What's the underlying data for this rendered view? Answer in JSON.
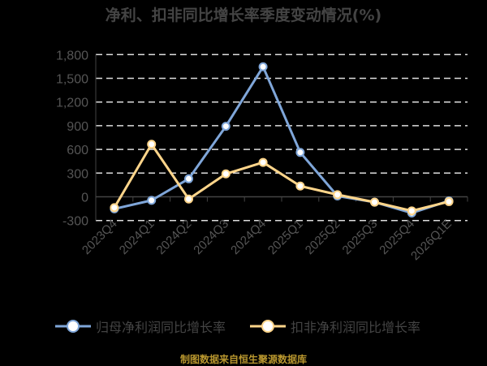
{
  "chart_data": {
    "type": "line",
    "title": "净利、扣非同比增长率季度变动情况(%)",
    "categories": [
      "2023Q4",
      "2024Q1",
      "2024Q2",
      "2024Q3",
      "2024Q4",
      "2025Q1",
      "2025Q2",
      "2025Q3",
      "2025Q4",
      "2026Q1E"
    ],
    "series": [
      {
        "name": "归母净利润同比增长率",
        "color": "#7fa6d9",
        "values": [
          -153,
          -45,
          228,
          893,
          1646,
          562,
          10,
          -68,
          -205,
          -51
        ]
      },
      {
        "name": "扣非净利润同比增长率",
        "color": "#ffd58a",
        "values": [
          -137,
          665,
          -28,
          290,
          436,
          136,
          27,
          -68,
          -178,
          -61
        ]
      }
    ],
    "ylim": [
      -300,
      1800
    ],
    "yticks": [
      -300,
      0,
      300,
      600,
      900,
      1200,
      1500,
      1800
    ],
    "ytick_labels": [
      "-300",
      "0",
      "300",
      "600",
      "900",
      "1,200",
      "1,500",
      "1,800"
    ],
    "grid": true,
    "legend": "bottom"
  },
  "source": "制图数据来自恒生聚源数据库"
}
